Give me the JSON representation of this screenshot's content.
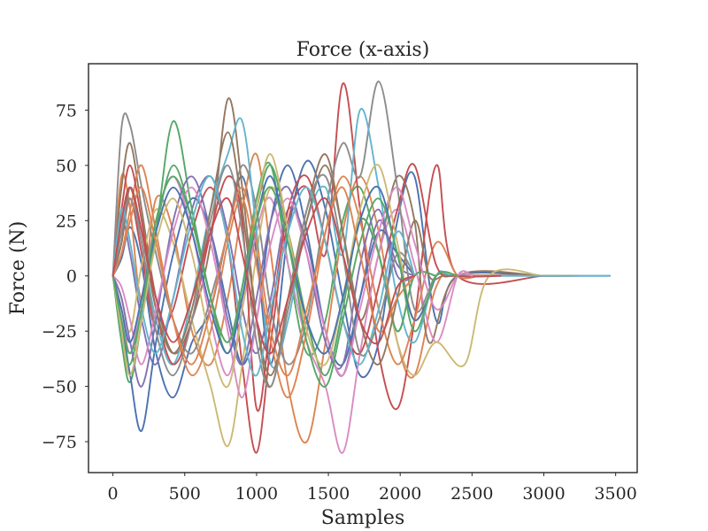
{
  "chart_data": {
    "type": "line",
    "title": "Force (x-axis)",
    "xlabel": "Samples",
    "ylabel": "Force (N)",
    "xlim": [
      -170,
      3650
    ],
    "ylim": [
      -89,
      96
    ],
    "x_ticks": [
      0,
      500,
      1000,
      1500,
      2000,
      2500,
      3000,
      3500
    ],
    "x_tick_labels": [
      "0",
      "500",
      "1000",
      "1500",
      "2000",
      "2500",
      "3000",
      "3500"
    ],
    "y_ticks": [
      75,
      50,
      25,
      0,
      -25,
      -50,
      -75
    ],
    "y_tick_labels": [
      "75",
      "50",
      "25",
      "0",
      "−25",
      "−50",
      "−75"
    ],
    "grid": false,
    "legend": false,
    "palette": [
      "#4c72b0",
      "#dd8452",
      "#55a868",
      "#c44e52",
      "#8172b3",
      "#937860",
      "#da8bc3",
      "#8c8c8c",
      "#ccb974",
      "#64b5cd"
    ],
    "series": [
      {
        "x": [
          0,
          60,
          120,
          200,
          300,
          420,
          550,
          680,
          800,
          900,
          1000,
          1100,
          1220,
          1350,
          1480,
          1600,
          1720,
          1850,
          1980,
          2100,
          2250,
          2400,
          3000,
          3460
        ],
        "y": [
          0,
          8,
          22,
          5,
          -35,
          -55,
          -30,
          -15,
          20,
          45,
          10,
          -40,
          20,
          52,
          30,
          -10,
          -45,
          -30,
          25,
          45,
          -20,
          0,
          0,
          0
        ]
      },
      {
        "x": [
          0,
          60,
          120,
          200,
          300,
          420,
          550,
          680,
          800,
          900,
          1000,
          1100,
          1220,
          1350,
          1480,
          1600,
          1720,
          1850,
          1980,
          2100,
          2250,
          2400,
          3000,
          3240
        ],
        "y": [
          0,
          45,
          30,
          -10,
          35,
          20,
          -25,
          -40,
          -10,
          30,
          55,
          10,
          -50,
          -75,
          -30,
          20,
          45,
          20,
          -30,
          -45,
          -5,
          0,
          0,
          0
        ]
      },
      {
        "x": [
          0,
          60,
          120,
          200,
          300,
          420,
          550,
          680,
          800,
          900,
          1000,
          1100,
          1220,
          1350,
          1480,
          1600,
          1720,
          1850,
          1980,
          2100,
          2250
        ],
        "y": [
          0,
          -30,
          -48,
          -20,
          20,
          50,
          25,
          -10,
          -30,
          -5,
          35,
          50,
          5,
          -35,
          -20,
          25,
          40,
          10,
          -25,
          0,
          0
        ]
      },
      {
        "x": [
          0,
          60,
          120,
          200,
          300,
          420,
          550,
          680,
          800,
          900,
          1000,
          1100,
          1220,
          1350,
          1480,
          1600,
          1720,
          1850,
          1980,
          2100,
          2250,
          2400,
          3000,
          3100
        ],
        "y": [
          0,
          15,
          35,
          10,
          -25,
          -15,
          20,
          40,
          15,
          -40,
          -80,
          -30,
          25,
          40,
          10,
          87,
          30,
          -35,
          -60,
          -20,
          50,
          0,
          0,
          0
        ]
      },
      {
        "x": [
          0,
          60,
          120,
          200,
          300,
          420,
          550,
          680,
          800,
          900,
          1000,
          1100,
          1220,
          1350,
          1480,
          1600,
          1720,
          1850,
          1980,
          2100
        ],
        "y": [
          0,
          25,
          10,
          -20,
          -40,
          -10,
          30,
          45,
          20,
          -15,
          -35,
          -10,
          30,
          15,
          -25,
          -45,
          -10,
          25,
          5,
          0
        ]
      },
      {
        "x": [
          0,
          60,
          120,
          200,
          300,
          420,
          550,
          680,
          800,
          900,
          1000,
          1100,
          1220,
          1350,
          1480,
          1600,
          1720,
          1850,
          1980,
          2100,
          2200,
          2400,
          3000,
          3200
        ],
        "y": [
          0,
          40,
          60,
          30,
          -10,
          -35,
          -20,
          15,
          80,
          40,
          -20,
          -50,
          -10,
          30,
          55,
          20,
          -20,
          10,
          45,
          25,
          -30,
          0,
          0,
          0
        ]
      },
      {
        "x": [
          0,
          60,
          120,
          200,
          300,
          420,
          550,
          680,
          800,
          900,
          1000,
          1100,
          1220,
          1350,
          1480,
          1600,
          1720,
          1850,
          1980,
          2100,
          2250,
          2400,
          2500
        ],
        "y": [
          0,
          -15,
          -35,
          -10,
          25,
          45,
          20,
          -20,
          -45,
          -15,
          20,
          35,
          5,
          -30,
          -50,
          -80,
          -35,
          10,
          30,
          5,
          -30,
          0,
          0
        ]
      },
      {
        "x": [
          0,
          60,
          120,
          200,
          300,
          420,
          550,
          680,
          800,
          900,
          1000,
          1100,
          1220,
          1350,
          1480,
          1600,
          1720,
          1850,
          1980,
          2100,
          2250,
          2400,
          3000,
          3160
        ],
        "y": [
          0,
          67,
          68,
          40,
          10,
          -20,
          -35,
          -10,
          20,
          50,
          30,
          -15,
          -40,
          -20,
          30,
          60,
          45,
          88,
          40,
          -15,
          0,
          0,
          0,
          0
        ]
      },
      {
        "x": [
          0,
          60,
          120,
          200,
          300,
          420,
          550,
          680,
          800,
          900,
          1000,
          1100,
          1220,
          1350,
          1480,
          1600,
          1720,
          1850,
          1980,
          2100,
          2250,
          2450,
          2620,
          3000,
          3150
        ],
        "y": [
          0,
          -10,
          -25,
          5,
          30,
          15,
          -20,
          -50,
          -77,
          -40,
          10,
          40,
          20,
          -20,
          -45,
          -15,
          25,
          10,
          -30,
          -45,
          -30,
          -40,
          0,
          0,
          0
        ]
      },
      {
        "x": [
          0,
          60,
          120,
          200,
          300,
          420,
          550,
          680,
          800,
          900,
          1000,
          1100,
          1220,
          1350,
          1480,
          1600,
          1720,
          1850,
          1980,
          2100,
          2250,
          2400,
          3000,
          3460
        ],
        "y": [
          0,
          20,
          40,
          15,
          -20,
          -40,
          -10,
          30,
          55,
          70,
          20,
          -40,
          -20,
          25,
          40,
          10,
          75,
          40,
          -10,
          -30,
          0,
          0,
          0,
          0
        ]
      },
      {
        "x": [
          0,
          60,
          120,
          200,
          300,
          420,
          550,
          680,
          800,
          900,
          1000,
          1100,
          1220,
          1350,
          1480,
          1600,
          1720,
          1850,
          1980,
          2100
        ],
        "y": [
          0,
          -20,
          -45,
          -70,
          -30,
          10,
          35,
          20,
          -15,
          -40,
          -20,
          25,
          50,
          20,
          -25,
          -40,
          -10,
          20,
          10,
          0
        ]
      },
      {
        "x": [
          0,
          60,
          120,
          200,
          300,
          420,
          550,
          680,
          800,
          900,
          1000,
          1100,
          1220,
          1350,
          1480,
          1600,
          1720,
          1850,
          1980,
          2100,
          2250,
          2400,
          2550
        ],
        "y": [
          0,
          10,
          30,
          50,
          20,
          -20,
          -45,
          -25,
          15,
          35,
          5,
          -30,
          -55,
          -25,
          20,
          45,
          25,
          -15,
          -40,
          -20,
          15,
          0,
          0
        ]
      },
      {
        "x": [
          0,
          60,
          120,
          200,
          300,
          420,
          550,
          680,
          800,
          900,
          1000,
          1100,
          1220,
          1350,
          1480,
          1600,
          1720,
          1850,
          1980,
          2100,
          2250
        ],
        "y": [
          0,
          -25,
          -40,
          -15,
          20,
          70,
          30,
          -10,
          -35,
          -5,
          30,
          50,
          20,
          -20,
          -45,
          -15,
          25,
          10,
          -25,
          0,
          0
        ]
      },
      {
        "x": [
          0,
          60,
          120,
          200,
          300,
          420,
          550,
          680,
          800,
          900,
          1000,
          1100,
          1220,
          1350,
          1480,
          1600,
          1720,
          1850,
          1980,
          2100,
          2250,
          2400,
          2700
        ],
        "y": [
          0,
          30,
          50,
          25,
          -15,
          -40,
          -20,
          20,
          45,
          25,
          -60,
          -20,
          30,
          45,
          15,
          -20,
          -35,
          -5,
          30,
          50,
          5,
          0,
          0
        ]
      },
      {
        "x": [
          0,
          60,
          120,
          200,
          300,
          420,
          550,
          680,
          800,
          900,
          1000,
          1100,
          1220,
          1350,
          1480,
          1600,
          1720,
          1850,
          1980,
          2100
        ],
        "y": [
          0,
          -10,
          -30,
          -50,
          -20,
          25,
          45,
          20,
          -20,
          -40,
          -10,
          25,
          40,
          10,
          -30,
          -40,
          5,
          30,
          0,
          0
        ]
      },
      {
        "x": [
          0,
          60,
          120,
          200,
          300,
          420,
          550,
          680,
          800,
          900,
          1000,
          1100,
          1220,
          1350,
          1480,
          1600,
          1720,
          1850,
          1980,
          2100,
          2200,
          2300,
          2400
        ],
        "y": [
          0,
          15,
          40,
          20,
          -15,
          -35,
          -15,
          30,
          65,
          30,
          -20,
          -45,
          -15,
          25,
          50,
          20,
          -20,
          -40,
          -10,
          25,
          0,
          0,
          0
        ]
      },
      {
        "x": [
          0,
          60,
          120,
          200,
          300,
          420,
          550,
          680,
          800,
          900,
          1000,
          1100,
          1220,
          1350,
          1480,
          1600,
          1720,
          1850,
          1980,
          2100,
          2250,
          2400,
          2500
        ],
        "y": [
          0,
          -5,
          -20,
          -40,
          -15,
          20,
          40,
          15,
          -25,
          -55,
          -20,
          15,
          35,
          10,
          -25,
          -45,
          -15,
          20,
          40,
          15,
          -15,
          0,
          0
        ]
      },
      {
        "x": [
          0,
          60,
          120,
          200,
          300,
          420,
          550,
          680,
          800,
          900,
          1000,
          1100,
          1220,
          1350,
          1480,
          1600,
          1720,
          1850,
          1980,
          2100
        ],
        "y": [
          0,
          20,
          35,
          15,
          -25,
          -45,
          -20,
          25,
          50,
          20,
          -30,
          -50,
          -15,
          30,
          45,
          10,
          -35,
          -20,
          10,
          0
        ]
      },
      {
        "x": [
          0,
          60,
          120,
          200,
          300,
          420,
          550,
          680,
          800,
          900,
          1000,
          1100,
          1220,
          1350,
          1480,
          1600,
          1720,
          1850,
          1980,
          2100,
          2250
        ],
        "y": [
          0,
          -25,
          -45,
          -20,
          15,
          35,
          10,
          -30,
          -50,
          -15,
          30,
          55,
          20,
          -25,
          -40,
          -10,
          30,
          50,
          15,
          -20,
          0
        ]
      },
      {
        "x": [
          0,
          60,
          120,
          200,
          300,
          420,
          550,
          680,
          800,
          900,
          1000,
          1100,
          1220,
          1350,
          1480,
          1600,
          1720,
          1850,
          1980,
          2100
        ],
        "y": [
          0,
          30,
          15,
          -15,
          -35,
          -10,
          25,
          45,
          15,
          -25,
          -45,
          -15,
          20,
          40,
          15,
          -20,
          -40,
          -15,
          20,
          0
        ]
      },
      {
        "x": [
          0,
          60,
          120,
          200,
          300,
          420,
          550,
          680,
          800,
          900,
          1000,
          1100,
          1220,
          1350,
          1480,
          1600,
          1720,
          1850,
          1980,
          2100,
          2250
        ],
        "y": [
          0,
          -15,
          -30,
          -10,
          20,
          40,
          20,
          -15,
          -35,
          -10,
          25,
          45,
          15,
          -20,
          -35,
          -10,
          25,
          40,
          10,
          -20,
          0
        ]
      },
      {
        "x": [
          0,
          60,
          120,
          200,
          300,
          420,
          550,
          680,
          800,
          900,
          1000,
          1100,
          1220,
          1350,
          1480,
          1600,
          1720,
          1850,
          1980,
          2100
        ],
        "y": [
          0,
          10,
          25,
          40,
          15,
          -20,
          -40,
          -15,
          20,
          40,
          15,
          -25,
          -45,
          -15,
          20,
          40,
          10,
          -25,
          -10,
          0
        ]
      },
      {
        "x": [
          0,
          60,
          120,
          200,
          300,
          420,
          550,
          680,
          800,
          900,
          1000,
          1100,
          1220,
          1350,
          1480,
          1600,
          1720,
          1850,
          1980,
          2100,
          2250,
          2400
        ],
        "y": [
          0,
          -20,
          -35,
          -15,
          25,
          45,
          25,
          -10,
          -30,
          -5,
          25,
          40,
          15,
          -30,
          -50,
          -20,
          15,
          35,
          10,
          -25,
          0,
          0
        ]
      },
      {
        "x": [
          0,
          60,
          120,
          200,
          300,
          420,
          550,
          680,
          800,
          900,
          1000,
          1100,
          1220,
          1350,
          1480,
          1600,
          1720,
          1850,
          1980,
          2100
        ],
        "y": [
          0,
          25,
          40,
          20,
          -10,
          -30,
          -10,
          20,
          35,
          10,
          -20,
          -35,
          -10,
          20,
          35,
          10,
          -20,
          -30,
          -5,
          0
        ]
      }
    ]
  }
}
